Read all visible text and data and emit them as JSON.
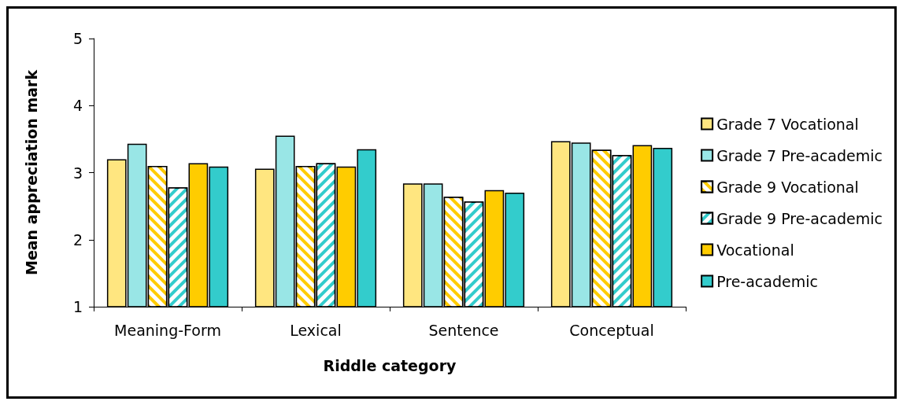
{
  "chart_data": {
    "type": "bar",
    "xlabel": "Riddle category",
    "ylabel": "Mean appreciation mark",
    "categories": [
      "Meaning-Form",
      "Lexical",
      "Sentence",
      "Conceptual"
    ],
    "series": [
      {
        "name": "Grade 7 Vocational",
        "color": "#ffe680",
        "values": [
          3.2,
          3.06,
          2.84,
          3.47
        ]
      },
      {
        "name": "Grade 7 Pre-academic",
        "color": "#99e6e6",
        "values": [
          3.43,
          3.55,
          2.84,
          3.45
        ]
      },
      {
        "name": "Grade 9 Vocational",
        "color": "#ffcc00",
        "values": [
          3.1,
          3.1,
          2.64,
          3.34
        ]
      },
      {
        "name": "Grade 9 Pre-academic",
        "color": "#33cccc",
        "values": [
          2.78,
          3.14,
          2.57,
          3.26
        ]
      },
      {
        "name": "Vocational",
        "color": "#ffcc00",
        "values": [
          3.14,
          3.09,
          2.74,
          3.41
        ]
      },
      {
        "name": "Pre-academic",
        "color": "#33cccc",
        "values": [
          3.09,
          3.35,
          2.7,
          3.37
        ]
      }
    ],
    "ylim": [
      1,
      5
    ],
    "yticks": [
      1,
      2,
      3,
      4,
      5
    ],
    "grid": false,
    "legend": "right"
  }
}
